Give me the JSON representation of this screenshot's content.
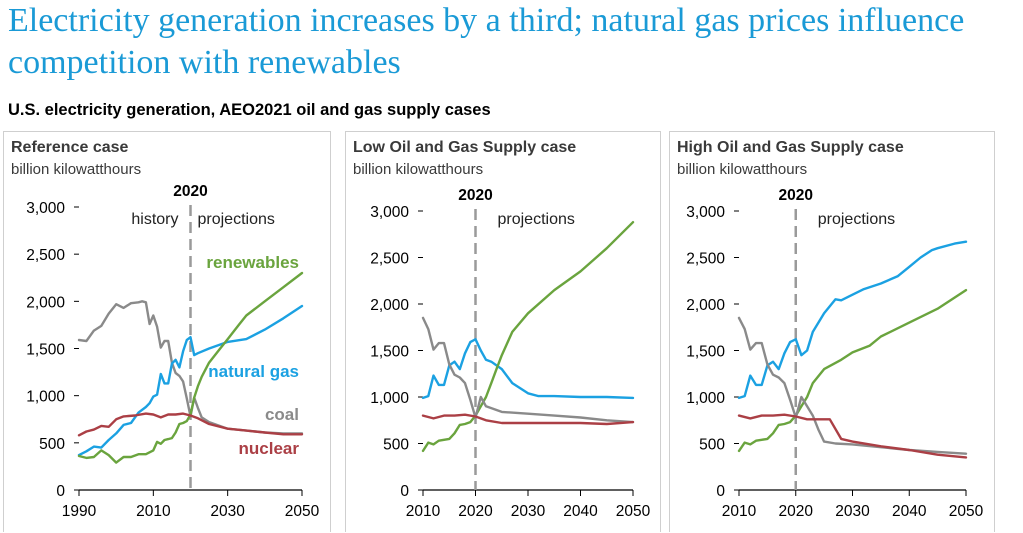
{
  "headline": "Electricity generation increases by a third; natural gas prices influence competition with renewables",
  "subtitle": "U.S. electricity generation, AEO2021 oil and gas supply cases",
  "colors": {
    "natural_gas": "#1ba1e2",
    "renewables": "#6aa43e",
    "coal": "#8a8a8a",
    "nuclear": "#ab3f45",
    "axis": "#000000",
    "divider": "#9a9a9a"
  },
  "chart_data": [
    {
      "type": "line",
      "title": "Reference case",
      "ylabel": "billion kilowatthours",
      "ylim": [
        0,
        3000
      ],
      "yticks": [
        "0",
        "500",
        "1,000",
        "1,500",
        "2,000",
        "2,500",
        "3,000"
      ],
      "xlim": [
        1990,
        2050
      ],
      "xticks": [
        "1990",
        "2010",
        "2030",
        "2050"
      ],
      "divider_year": "2020",
      "history_label": "history",
      "projection_label": "projections",
      "labels": {
        "renewables": "renewables",
        "natural_gas": "natural gas",
        "coal": "coal",
        "nuclear": "nuclear"
      },
      "series": [
        {
          "name": "coal",
          "x": [
            1990,
            1992,
            1994,
            1996,
            1998,
            2000,
            2002,
            2004,
            2006,
            2007,
            2008,
            2009,
            2010,
            2011,
            2012,
            2013,
            2014,
            2015,
            2016,
            2017,
            2018,
            2019,
            2020,
            2021,
            2022,
            2023,
            2025,
            2030,
            2035,
            2040,
            2045,
            2050
          ],
          "values": [
            1590,
            1580,
            1690,
            1740,
            1870,
            1970,
            1930,
            1980,
            1990,
            2000,
            1990,
            1760,
            1850,
            1730,
            1510,
            1580,
            1580,
            1350,
            1240,
            1210,
            1150,
            970,
            780,
            980,
            870,
            770,
            720,
            650,
            630,
            610,
            600,
            600
          ]
        },
        {
          "name": "natural gas",
          "x": [
            1990,
            1992,
            1994,
            1996,
            1998,
            2000,
            2002,
            2004,
            2006,
            2008,
            2009,
            2010,
            2011,
            2012,
            2013,
            2014,
            2015,
            2016,
            2017,
            2018,
            2019,
            2020,
            2021,
            2022,
            2025,
            2030,
            2035,
            2040,
            2045,
            2050
          ],
          "values": [
            370,
            410,
            460,
            450,
            530,
            600,
            690,
            710,
            820,
            880,
            920,
            990,
            1010,
            1230,
            1130,
            1130,
            1340,
            1380,
            1300,
            1470,
            1590,
            1620,
            1430,
            1450,
            1500,
            1570,
            1600,
            1700,
            1820,
            1950
          ]
        },
        {
          "name": "renewables",
          "x": [
            1990,
            1992,
            1994,
            1996,
            1998,
            2000,
            2002,
            2004,
            2006,
            2008,
            2010,
            2011,
            2012,
            2013,
            2014,
            2015,
            2016,
            2017,
            2018,
            2019,
            2020,
            2021,
            2022,
            2023,
            2025,
            2028,
            2030,
            2033,
            2035,
            2040,
            2045,
            2050
          ],
          "values": [
            360,
            340,
            350,
            420,
            370,
            290,
            350,
            350,
            380,
            380,
            420,
            510,
            490,
            530,
            540,
            550,
            610,
            700,
            710,
            730,
            800,
            980,
            1100,
            1200,
            1350,
            1500,
            1600,
            1750,
            1850,
            2000,
            2150,
            2300
          ]
        },
        {
          "name": "nuclear",
          "x": [
            1990,
            1992,
            1994,
            1996,
            1998,
            2000,
            2002,
            2005,
            2008,
            2010,
            2012,
            2014,
            2016,
            2018,
            2020,
            2022,
            2025,
            2030,
            2035,
            2040,
            2045,
            2050
          ],
          "values": [
            580,
            620,
            640,
            680,
            670,
            750,
            780,
            790,
            810,
            800,
            770,
            800,
            800,
            810,
            790,
            760,
            700,
            650,
            630,
            610,
            590,
            590
          ]
        }
      ]
    },
    {
      "type": "line",
      "title": "Low Oil and Gas Supply case",
      "ylabel": "billion kilowatthours",
      "ylim": [
        0,
        3000
      ],
      "yticks": [
        "0",
        "500",
        "1,000",
        "1,500",
        "2,000",
        "2,500",
        "3,000"
      ],
      "xlim": [
        2010,
        2050
      ],
      "xticks": [
        "2010",
        "2020",
        "2030",
        "2040",
        "2050"
      ],
      "divider_year": "2020",
      "projection_label": "projections",
      "series": [
        {
          "name": "natural gas",
          "x": [
            2010,
            2011,
            2012,
            2013,
            2014,
            2015,
            2016,
            2017,
            2018,
            2019,
            2020,
            2021,
            2022,
            2023,
            2025,
            2027,
            2030,
            2032,
            2035,
            2040,
            2045,
            2050
          ],
          "values": [
            990,
            1010,
            1230,
            1130,
            1130,
            1340,
            1380,
            1300,
            1470,
            1590,
            1620,
            1500,
            1400,
            1380,
            1300,
            1150,
            1040,
            1010,
            1010,
            1000,
            1000,
            990
          ]
        },
        {
          "name": "renewables",
          "x": [
            2010,
            2011,
            2012,
            2013,
            2014,
            2015,
            2016,
            2017,
            2018,
            2019,
            2020,
            2021,
            2022,
            2023,
            2024,
            2025,
            2027,
            2030,
            2035,
            2040,
            2045,
            2050
          ],
          "values": [
            420,
            510,
            490,
            530,
            540,
            550,
            610,
            700,
            710,
            730,
            800,
            900,
            1000,
            1150,
            1300,
            1450,
            1700,
            1900,
            2150,
            2350,
            2600,
            2880
          ]
        },
        {
          "name": "coal",
          "x": [
            2010,
            2011,
            2012,
            2013,
            2014,
            2015,
            2016,
            2017,
            2018,
            2019,
            2020,
            2021,
            2022,
            2025,
            2030,
            2035,
            2040,
            2045,
            2050
          ],
          "values": [
            1850,
            1730,
            1510,
            1580,
            1580,
            1350,
            1240,
            1210,
            1150,
            970,
            780,
            1000,
            900,
            840,
            820,
            800,
            780,
            750,
            730
          ]
        },
        {
          "name": "nuclear",
          "x": [
            2010,
            2012,
            2014,
            2016,
            2018,
            2020,
            2022,
            2025,
            2030,
            2035,
            2040,
            2045,
            2050
          ],
          "values": [
            800,
            770,
            800,
            800,
            810,
            790,
            750,
            720,
            720,
            720,
            720,
            710,
            730
          ]
        }
      ]
    },
    {
      "type": "line",
      "title": "High Oil and Gas Supply case",
      "ylabel": "billion kilowatthours",
      "ylim": [
        0,
        3000
      ],
      "yticks": [
        "0",
        "500",
        "1,000",
        "1,500",
        "2,000",
        "2,500",
        "3,000"
      ],
      "xlim": [
        2010,
        2050
      ],
      "xticks": [
        "2010",
        "2020",
        "2030",
        "2040",
        "2050"
      ],
      "divider_year": "2020",
      "projection_label": "projections",
      "series": [
        {
          "name": "natural gas",
          "x": [
            2010,
            2011,
            2012,
            2013,
            2014,
            2015,
            2016,
            2017,
            2018,
            2019,
            2020,
            2021,
            2022,
            2023,
            2025,
            2027,
            2028,
            2030,
            2032,
            2035,
            2038,
            2040,
            2042,
            2044,
            2045,
            2048,
            2050
          ],
          "values": [
            990,
            1010,
            1230,
            1130,
            1130,
            1340,
            1380,
            1300,
            1470,
            1590,
            1620,
            1450,
            1500,
            1700,
            1900,
            2050,
            2040,
            2100,
            2160,
            2220,
            2300,
            2400,
            2500,
            2580,
            2600,
            2650,
            2670
          ]
        },
        {
          "name": "renewables",
          "x": [
            2010,
            2011,
            2012,
            2013,
            2014,
            2015,
            2016,
            2017,
            2018,
            2019,
            2020,
            2021,
            2022,
            2023,
            2025,
            2028,
            2030,
            2033,
            2035,
            2040,
            2045,
            2050
          ],
          "values": [
            420,
            510,
            490,
            530,
            540,
            550,
            610,
            700,
            710,
            730,
            800,
            900,
            1000,
            1150,
            1300,
            1400,
            1480,
            1550,
            1650,
            1800,
            1950,
            2150
          ]
        },
        {
          "name": "coal",
          "x": [
            2010,
            2011,
            2012,
            2013,
            2014,
            2015,
            2016,
            2017,
            2018,
            2019,
            2020,
            2021,
            2022,
            2023,
            2024,
            2025,
            2027,
            2030,
            2035,
            2040,
            2045,
            2050
          ],
          "values": [
            1850,
            1730,
            1510,
            1580,
            1580,
            1350,
            1240,
            1210,
            1150,
            970,
            780,
            1000,
            900,
            800,
            650,
            520,
            500,
            490,
            460,
            430,
            410,
            390
          ]
        },
        {
          "name": "nuclear",
          "x": [
            2010,
            2012,
            2014,
            2016,
            2018,
            2020,
            2022,
            2024,
            2026,
            2028,
            2030,
            2035,
            2040,
            2045,
            2050
          ],
          "values": [
            800,
            770,
            800,
            800,
            810,
            790,
            760,
            760,
            760,
            550,
            520,
            470,
            430,
            380,
            350
          ]
        }
      ]
    }
  ]
}
